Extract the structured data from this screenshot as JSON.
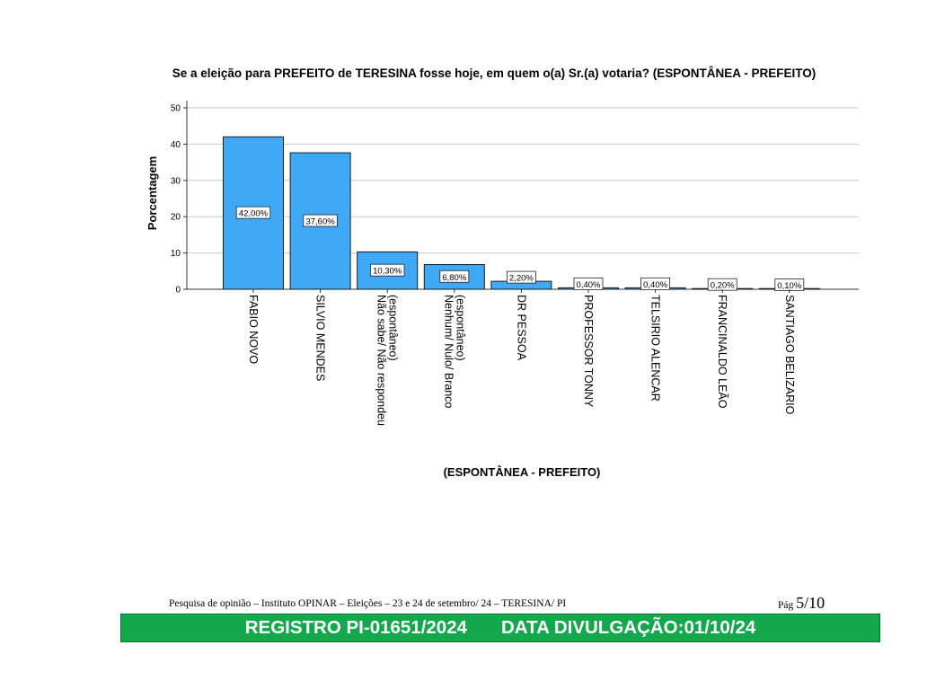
{
  "chart_data": {
    "type": "bar",
    "title": "Se a eleição para PREFEITO de TERESINA fosse hoje, em quem o(a) Sr.(a) votaria? (ESPONTÂNEA  - PREFEITO)",
    "xlabel": "(ESPONTÂNEA  - PREFEITO)",
    "ylabel": "Porcentagem",
    "ylim": [
      0,
      50
    ],
    "yticks": [
      0,
      10,
      20,
      30,
      40,
      50
    ],
    "grid": true,
    "categories": [
      "FABIO NOVO",
      "SILVIO MENDES",
      "Não sabe/ Não respondeu (espontâneo)",
      "Nenhum/ Nulo/ Branco (espontâneo)",
      "DR PESSOA",
      "PROFESSOR TONNY",
      "TELSIRIO ALENCAR",
      "FRANCINALDO LEÃO",
      "SANTIAGO BELIZARIO"
    ],
    "category_lines": [
      [
        "FABIO NOVO"
      ],
      [
        "SILVIO MENDES"
      ],
      [
        "Não sabe/ Não respondeu",
        "(espontâneo)"
      ],
      [
        "Nenhum/ Nulo/ Branco",
        "(espontâneo)"
      ],
      [
        "DR PESSOA"
      ],
      [
        "PROFESSOR TONNY"
      ],
      [
        "TELSIRIO ALENCAR"
      ],
      [
        "FRANCINALDO LEÃO"
      ],
      [
        "SANTIAGO BELIZARIO"
      ]
    ],
    "values": [
      42.0,
      37.6,
      10.3,
      6.8,
      2.2,
      0.4,
      0.4,
      0.2,
      0.1
    ],
    "data_labels": [
      "42,00%",
      "37,60%",
      "10,30%",
      "6,80%",
      "2,20%",
      "0,40%",
      "0,40%",
      "0,20%",
      "0,10%"
    ],
    "bar_color": "#3fa9f5"
  },
  "footer": {
    "source": "Pesquisa de opinião – Instituto OPINAR – Eleições – 23 e  24 de setembro/ 24 – TERESINA/ PI",
    "page_prefix": "Pág",
    "page": "5/10"
  },
  "registry": {
    "registro": "REGISTRO PI-01651/2024",
    "divulgacao": "DATA DIVULGAÇÃO:01/10/24",
    "color": "#12a84b"
  }
}
